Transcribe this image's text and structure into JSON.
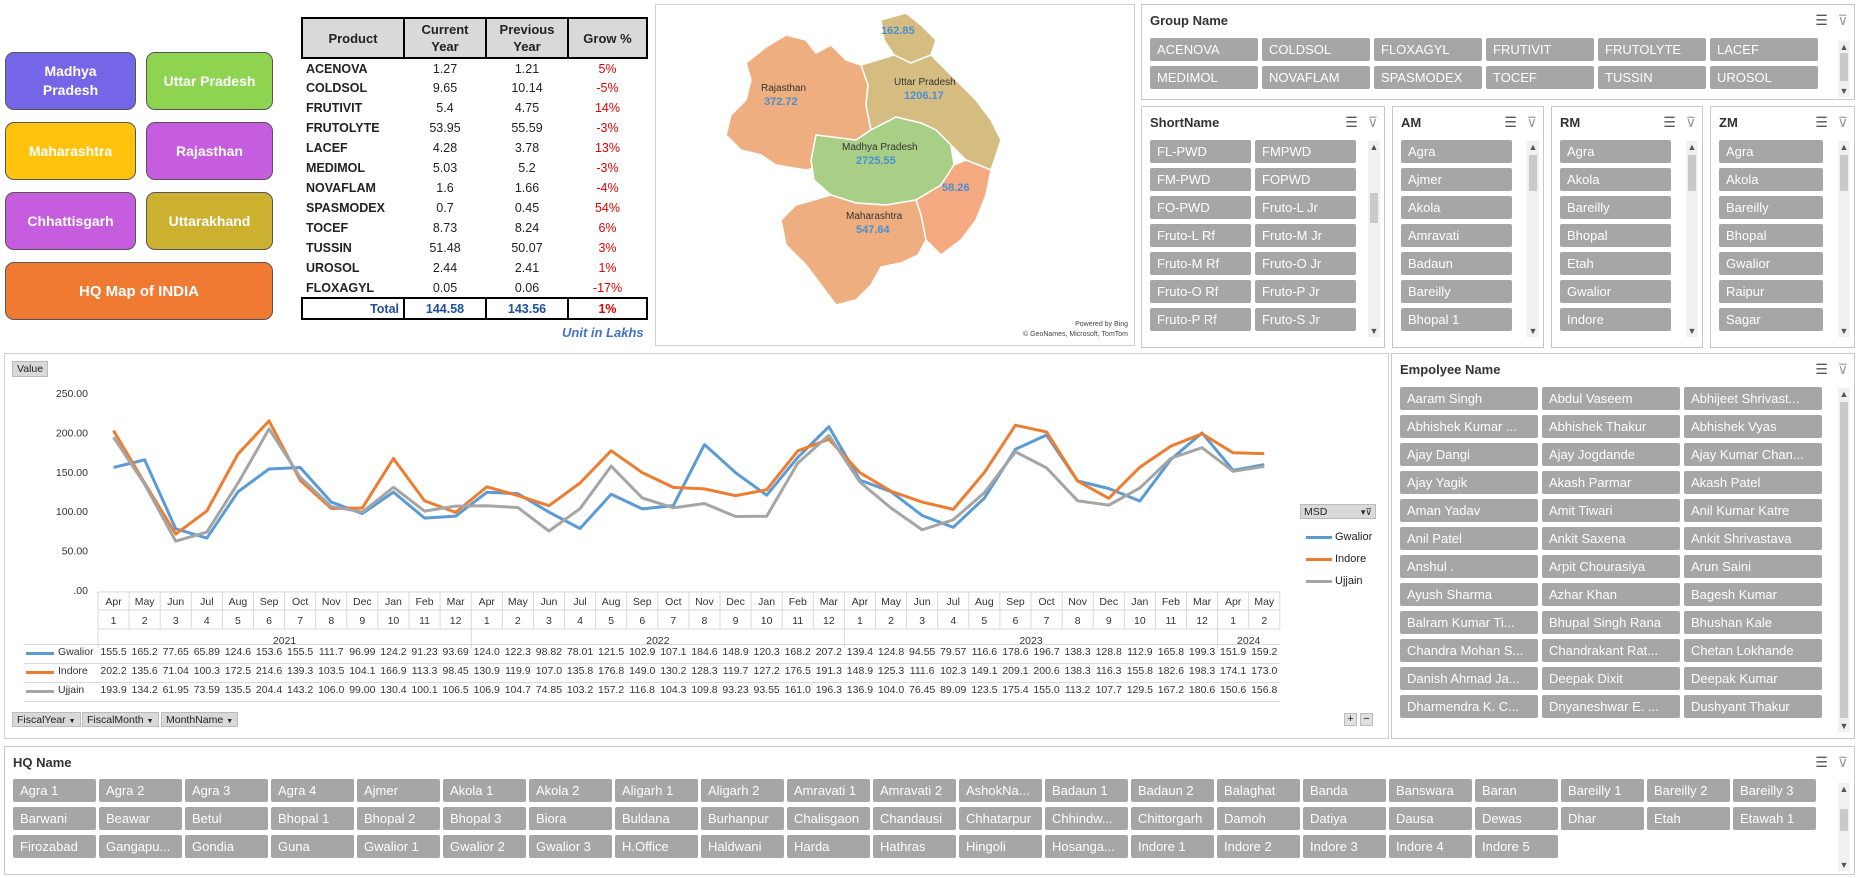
{
  "state_buttons": [
    {
      "label": "Madhya Pradesh",
      "color": "#7566e8"
    },
    {
      "label": "Uttar Pradesh",
      "color": "#8ed451"
    },
    {
      "label": "Maharashtra",
      "color": "#ffc30e"
    },
    {
      "label": "Rajasthan",
      "color": "#c65cde"
    },
    {
      "label": "Chhattisgarh",
      "color": "#c65cde"
    },
    {
      "label": "Uttarakhand",
      "color": "#ccb02f"
    },
    {
      "label": "HQ Map of INDIA",
      "color": "#f07a32"
    }
  ],
  "product_table": {
    "headers": [
      "Product",
      "Current Year",
      "Previous Year",
      "Grow %"
    ],
    "rows": [
      [
        "ACENOVA",
        "1.27",
        "1.21",
        "5%"
      ],
      [
        "COLDSOL",
        "9.65",
        "10.14",
        "-5%"
      ],
      [
        "FRUTIVIT",
        "5.4",
        "4.75",
        "14%"
      ],
      [
        "FRUTOLYTE",
        "53.95",
        "55.59",
        "-3%"
      ],
      [
        "LACEF",
        "4.28",
        "3.78",
        "13%"
      ],
      [
        "MEDIMOL",
        "5.03",
        "5.2",
        "-3%"
      ],
      [
        "NOVAFLAM",
        "1.6",
        "1.66",
        "-4%"
      ],
      [
        "SPASMODEX",
        "0.7",
        "0.45",
        "54%"
      ],
      [
        "TOCEF",
        "8.73",
        "8.24",
        "6%"
      ],
      [
        "TUSSIN",
        "51.48",
        "50.07",
        "3%"
      ],
      [
        "UROSOL",
        "2.44",
        "2.41",
        "1%"
      ],
      [
        "FLOXAGYL",
        "0.05",
        "0.06",
        "-17%"
      ]
    ],
    "total": [
      "Total",
      "144.58",
      "143.56",
      "1%"
    ],
    "unit_note": "Unit in Lakhs"
  },
  "map": {
    "regions": [
      {
        "name": "Rajasthan",
        "value": "372.72"
      },
      {
        "name": "Uttar Pradesh",
        "value": "1206.17"
      },
      {
        "name": "Madhya Pradesh",
        "value": "2725.55"
      },
      {
        "name": "Maharashtra",
        "value": "547.64"
      }
    ],
    "extra_values": [
      "162.85",
      "58.26"
    ],
    "attribution_1": "Powered by Bing",
    "attribution_2": "© GeoNames, Microsoft, TomTom",
    "colors": {
      "orange": "#eeae80",
      "tan": "#d5bd82",
      "green": "#a9cf86",
      "peach": "#f4a981",
      "value_text": "#4a8fd0"
    }
  },
  "slicers": {
    "group": {
      "title": "Group Name",
      "items": [
        "ACENOVA",
        "COLDSOL",
        "FLOXAGYL",
        "FRUTIVIT",
        "FRUTOLYTE",
        "LACEF",
        "MEDIMOL",
        "NOVAFLAM",
        "SPASMODEX",
        "TOCEF",
        "TUSSIN",
        "UROSOL"
      ]
    },
    "short": {
      "title": "ShortName",
      "items": [
        "FL-PWD",
        "FMPWD",
        "FM-PWD",
        "FOPWD",
        "FO-PWD",
        "Fruto-L Jr",
        "Fruto-L Rf",
        "Fruto-M Jr",
        "Fruto-M Rf",
        "Fruto-O Jr",
        "Fruto-O Rf",
        "Fruto-P Jr",
        "Fruto-P Rf",
        "Fruto-S Jr"
      ]
    },
    "am": {
      "title": "AM",
      "items": [
        "Agra",
        "Ajmer",
        "Akola",
        "Amravati",
        "Badaun",
        "Bareilly",
        "Bhopal 1"
      ]
    },
    "rm": {
      "title": "RM",
      "items": [
        "Agra",
        "Akola",
        "Bareilly",
        "Bhopal",
        "Etah",
        "Gwalior",
        "Indore"
      ]
    },
    "zm": {
      "title": "ZM",
      "items": [
        "Agra",
        "Akola",
        "Bareilly",
        "Bhopal",
        "Gwalior",
        "Raipur",
        "Sagar"
      ]
    },
    "employee": {
      "title": "Empolyee Name",
      "items": [
        "Aaram Singh",
        "Abdul Vaseem",
        "Abhijeet Shrivast...",
        "Abhishek Kumar ...",
        "Abhishek Thakur",
        "Abhishek Vyas",
        "Ajay Dangi",
        "Ajay Jogdande",
        "Ajay Kumar Chan...",
        "Ajay Yagik",
        "Akash Parmar",
        "Akash Patel",
        "Aman Yadav",
        "Amit Tiwari",
        "Anil Kumar Katre",
        "Anil Patel",
        "Ankit Saxena",
        "Ankit Shrivastava",
        "Anshul .",
        "Arpit Chourasiya",
        "Arun Saini",
        "Ayush Sharma",
        "Azhar Khan",
        "Bagesh Kumar",
        "Balram Kumar Ti...",
        "Bhupal Singh Rana",
        "Bhushan Kale",
        "Chandra Mohan S...",
        "Chandrakant Rat...",
        "Chetan Lokhande",
        "Danish Ahmad Ja...",
        "Deepak Dixit",
        "Deepak Kumar",
        "Dharmendra K. C...",
        "Dnyaneshwar E. ...",
        "Dushyant Thakur"
      ]
    },
    "hq": {
      "title": "HQ Name",
      "items": [
        "Agra 1",
        "Agra 2",
        "Agra 3",
        "Agra 4",
        "Ajmer",
        "Akola 1",
        "Akola 2",
        "Aligarh 1",
        "Aligarh 2",
        "Amravati 1",
        "Amravati 2",
        "AshokNa...",
        "Badaun 1",
        "Badaun 2",
        "Balaghat",
        "Banda",
        "Banswara",
        "Baran",
        "Bareilly 1",
        "Bareilly 2",
        "Bareilly 3",
        "Barwani",
        "Beawar",
        "Betul",
        "Bhopal 1",
        "Bhopal 2",
        "Bhopal 3",
        "Biora",
        "Buldana",
        "Burhanpur",
        "Chalisgaon",
        "Chandausi",
        "Chhatarpur",
        "Chhindw...",
        "Chittorgarh",
        "Damoh",
        "Datiya",
        "Dausa",
        "Dewas",
        "Dhar",
        "Etah",
        "Etawah 1",
        "Firozabad",
        "Gangapu...",
        "Gondia",
        "Guna",
        "Gwalior 1",
        "Gwalior 2",
        "Gwalior 3",
        "H.Office",
        "Haldwani",
        "Harda",
        "Hathras",
        "Hingoli",
        "Hosanga...",
        "Indore 1",
        "Indore 2",
        "Indore 3",
        "Indore 4",
        "Indore 5"
      ]
    }
  },
  "chart_buttons": {
    "value": "Value",
    "legend_filter": "MSD",
    "fiscal_year": "FiscalYear",
    "fiscal_month": "FiscalMonth",
    "month_name": "MonthName",
    "zoom_in": "+",
    "zoom_out": "−"
  },
  "chart_data": {
    "type": "line",
    "y_ticks": [
      "250.00",
      "200.00",
      "150.00",
      "100.00",
      "50.00",
      ".00"
    ],
    "ylim": [
      0,
      250
    ],
    "months": [
      "Apr",
      "May",
      "Jun",
      "Jul",
      "Aug",
      "Sep",
      "Oct",
      "Nov",
      "Dec",
      "Jan",
      "Feb",
      "Mar",
      "Apr",
      "May",
      "Jun",
      "Jul",
      "Aug",
      "Sep",
      "Oct",
      "Nov",
      "Dec",
      "Jan",
      "Feb",
      "Mar",
      "Apr",
      "May",
      "Jun",
      "Jul",
      "Aug",
      "Sep",
      "Oct",
      "Nov",
      "Dec",
      "Jan",
      "Feb",
      "Mar",
      "Apr",
      "May"
    ],
    "month_nums": [
      "1",
      "2",
      "3",
      "4",
      "5",
      "6",
      "7",
      "8",
      "9",
      "10",
      "11",
      "12",
      "1",
      "2",
      "3",
      "4",
      "5",
      "6",
      "7",
      "8",
      "9",
      "10",
      "11",
      "12",
      "1",
      "2",
      "3",
      "4",
      "5",
      "6",
      "7",
      "8",
      "9",
      "10",
      "11",
      "12",
      "1",
      "2"
    ],
    "year_groups": [
      {
        "label": "2021",
        "start": 0,
        "count": 12
      },
      {
        "label": "2022",
        "start": 12,
        "count": 12
      },
      {
        "label": "2023",
        "start": 24,
        "count": 12
      },
      {
        "label": "2024",
        "start": 36,
        "count": 2
      }
    ],
    "series": [
      {
        "name": "Gwalior",
        "color": "#5b9bd5",
        "values": [
          155.5,
          165.2,
          77.65,
          65.89,
          124.6,
          153.6,
          155.5,
          111.7,
          96.99,
          124.2,
          91.23,
          93.69,
          124.0,
          122.3,
          98.82,
          78.01,
          121.5,
          102.9,
          107.1,
          184.6,
          148.9,
          120.3,
          168.2,
          207.2,
          139.4,
          124.8,
          94.55,
          79.57,
          116.6,
          178.6,
          196.7,
          138.3,
          128.8,
          112.9,
          165.8,
          199.3,
          151.9,
          159.2
        ],
        "labels": [
          "155.5",
          "165.2",
          "77.65",
          "65.89",
          "124.6",
          "153.6",
          "155.5",
          "111.7",
          "96.99",
          "124.2",
          "91.23",
          "93.69",
          "124.0",
          "122.3",
          "98.82",
          "78.01",
          "121.5",
          "102.9",
          "107.1",
          "184.6",
          "148.9",
          "120.3",
          "168.2",
          "207.2",
          "139.4",
          "124.8",
          "94.55",
          "79.57",
          "116.6",
          "178.6",
          "196.7",
          "138.3",
          "128.8",
          "112.9",
          "165.8",
          "199.3",
          "151.9",
          "159.2"
        ]
      },
      {
        "name": "Indore",
        "color": "#ed7d31",
        "values": [
          202.2,
          135.6,
          71.04,
          100.3,
          172.5,
          214.6,
          139.3,
          103.5,
          104.1,
          166.9,
          113.3,
          98.45,
          130.9,
          119.9,
          107.0,
          135.8,
          176.8,
          149.0,
          130.2,
          128.3,
          119.7,
          127.2,
          176.5,
          191.3,
          148.9,
          125.3,
          111.6,
          102.3,
          149.1,
          209.1,
          200.6,
          138.3,
          116.3,
          155.8,
          182.6,
          198.3,
          174.1,
          173.0
        ],
        "labels": [
          "202.2",
          "135.6",
          "71.04",
          "100.3",
          "172.5",
          "214.6",
          "139.3",
          "103.5",
          "104.1",
          "166.9",
          "113.3",
          "98.45",
          "130.9",
          "119.9",
          "107.0",
          "135.8",
          "176.8",
          "149.0",
          "130.2",
          "128.3",
          "119.7",
          "127.2",
          "176.5",
          "191.3",
          "148.9",
          "125.3",
          "111.6",
          "102.3",
          "149.1",
          "209.1",
          "200.6",
          "138.3",
          "116.3",
          "155.8",
          "182.6",
          "198.3",
          "174.1",
          "173.0"
        ]
      },
      {
        "name": "Ujjain",
        "color": "#a5a5a5",
        "values": [
          193.9,
          134.2,
          61.95,
          73.59,
          135.5,
          204.4,
          143.2,
          106.0,
          99.0,
          130.4,
          100.1,
          106.5,
          106.9,
          104.7,
          74.85,
          103.2,
          157.2,
          116.8,
          104.3,
          109.8,
          93.23,
          93.55,
          161.0,
          196.3,
          136.9,
          104.0,
          76.45,
          89.09,
          123.5,
          175.4,
          155.0,
          113.2,
          107.7,
          129.5,
          167.2,
          180.6,
          150.6,
          156.8
        ],
        "labels": [
          "193.9",
          "134.2",
          "61.95",
          "73.59",
          "135.5",
          "204.4",
          "143.2",
          "106.0",
          "99.00",
          "130.4",
          "100.1",
          "106.5",
          "106.9",
          "104.7",
          "74.85",
          "103.2",
          "157.2",
          "116.8",
          "104.3",
          "109.8",
          "93.23",
          "93.55",
          "161.0",
          "196.3",
          "136.9",
          "104.0",
          "76.45",
          "89.09",
          "123.5",
          "175.4",
          "155.0",
          "113.2",
          "107.7",
          "129.5",
          "167.2",
          "180.6",
          "150.6",
          "156.8"
        ]
      }
    ],
    "legend_placement": "right"
  }
}
